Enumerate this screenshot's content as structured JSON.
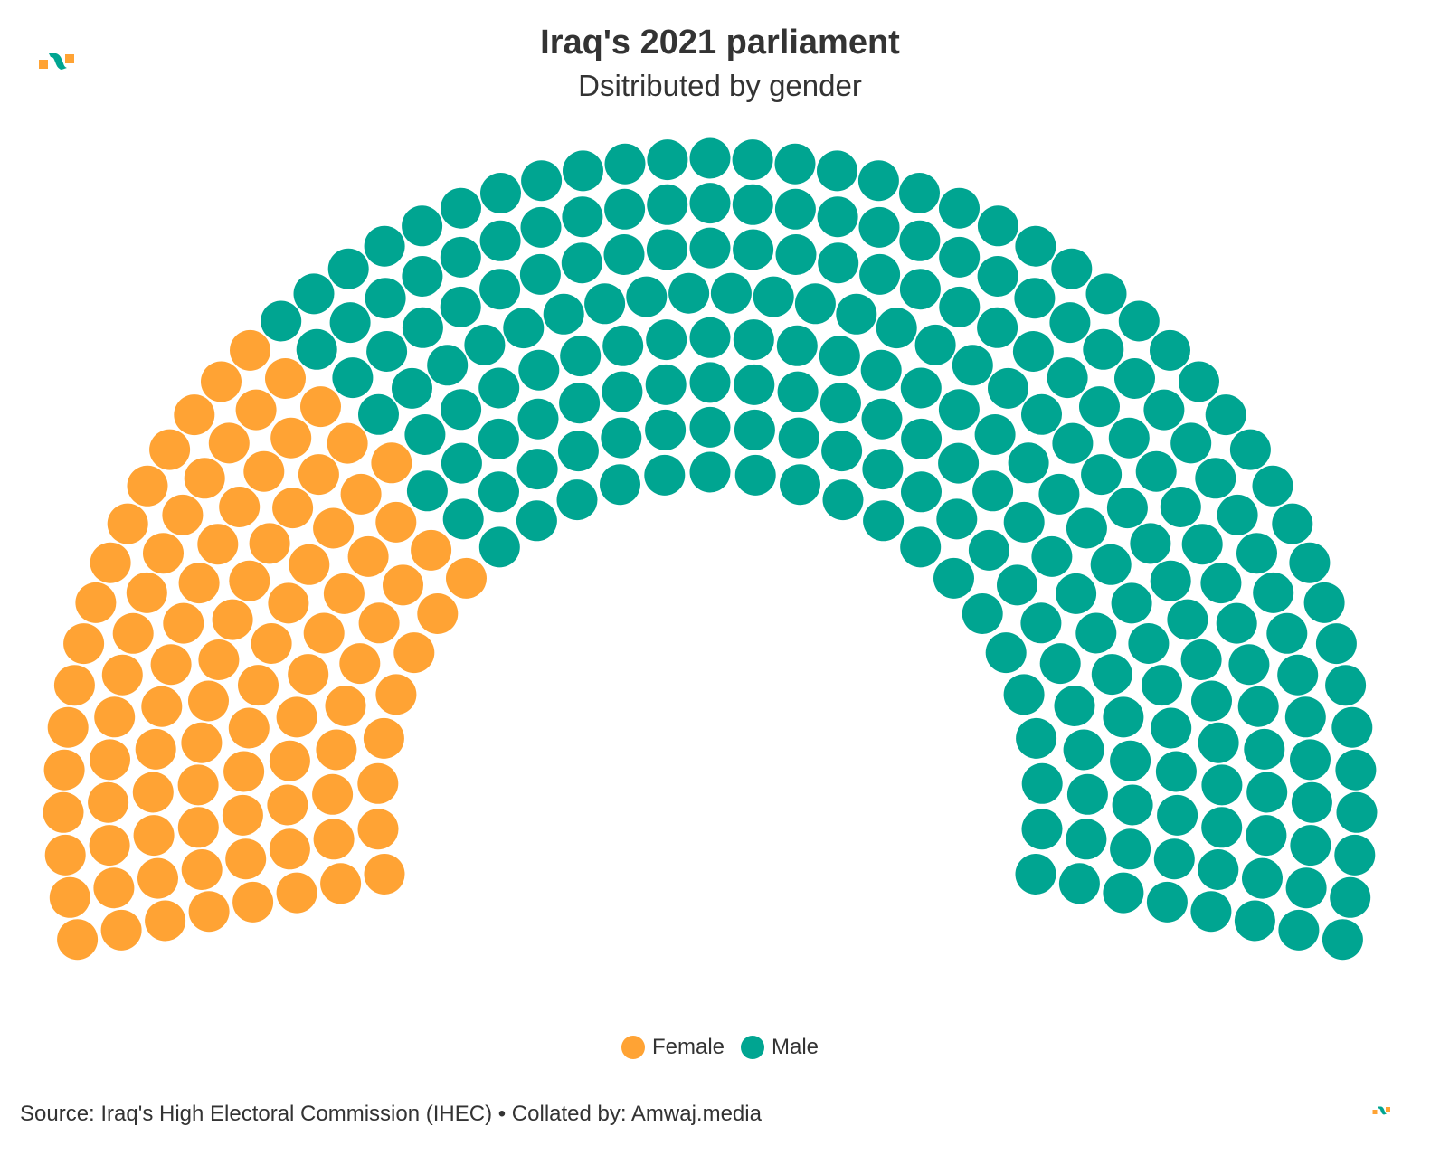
{
  "title": "Iraq's 2021 parliament",
  "subtitle": "Dsitributed by gender",
  "source": "Source: Iraq's High Electoral Commission (IHEC) • Collated by: Amwaj.media",
  "colors": {
    "Female": "#ffa334",
    "Male": "#00a591"
  },
  "chart_data": {
    "type": "item-parliament",
    "title": "Iraq's 2021 parliament",
    "subtitle": "Dsitributed by gender",
    "series": [
      {
        "name": "Female",
        "value": 97,
        "color": "#ffa334"
      },
      {
        "name": "Male",
        "value": 232,
        "color": "#00a591"
      }
    ],
    "total_seats": 329,
    "rows": 8,
    "legend_position": "bottom-center"
  },
  "legend": [
    {
      "label": "Female"
    },
    {
      "label": "Male"
    }
  ]
}
